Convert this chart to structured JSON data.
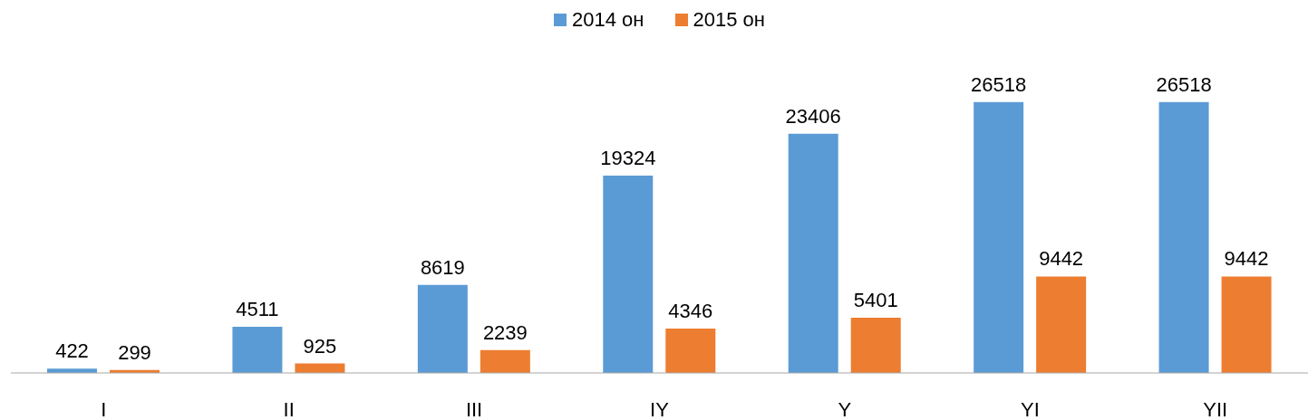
{
  "chart_data": {
    "type": "bar",
    "categories": [
      "I",
      "II",
      "III",
      "IY",
      "Y",
      "YI",
      "YII"
    ],
    "series": [
      {
        "name": "2014 он",
        "color": "#5b9bd5",
        "values": [
          422,
          4511,
          8619,
          19324,
          23406,
          26518,
          26518
        ]
      },
      {
        "name": "2015 он",
        "color": "#ed7d31",
        "values": [
          299,
          925,
          2239,
          4346,
          5401,
          9442,
          9442
        ]
      }
    ],
    "data_labels": true,
    "legend": "top"
  }
}
